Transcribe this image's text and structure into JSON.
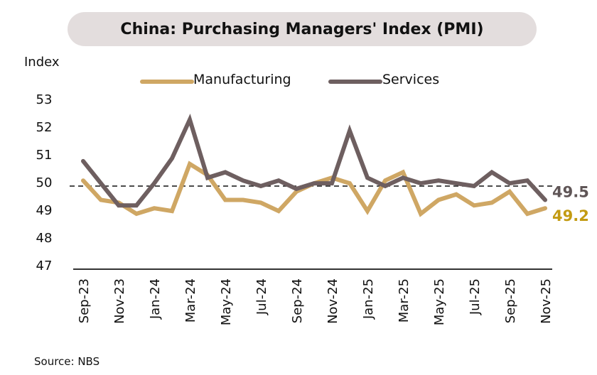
{
  "chart_data": {
    "type": "line",
    "title": "China: Purchasing Managers' Index (PMI)",
    "ylabel": "Index",
    "source": "Source: NBS",
    "ylim": [
      47,
      53
    ],
    "yticks": [
      47,
      48,
      49,
      50,
      51,
      52,
      53
    ],
    "reference_line": 50,
    "grid": false,
    "legend_placement": "top",
    "x": [
      "Sep-23",
      "Oct-23",
      "Nov-23",
      "Dec-23",
      "Jan-24",
      "Feb-24",
      "Mar-24",
      "Apr-24",
      "May-24",
      "Jun-24",
      "Jul-24",
      "Aug-24",
      "Sep-24",
      "Oct-24",
      "Nov-24",
      "Dec-24",
      "Jan-25",
      "Feb-25",
      "Mar-25",
      "Apr-25",
      "May-25",
      "Jun-25",
      "Jul-25",
      "Aug-25",
      "Sep-25",
      "Oct-25",
      "Nov-25"
    ],
    "xtick_labels": [
      "Sep-23",
      "Nov-23",
      "Jan-24",
      "Mar-24",
      "May-24",
      "Jul-24",
      "Sep-24",
      "Nov-24",
      "Jan-25",
      "Mar-25",
      "May-25",
      "Jul-25",
      "Sep-25",
      "Nov-25"
    ],
    "series": [
      {
        "name": "Manufacturing",
        "color": "#cfa764",
        "end_label": "49.2",
        "end_label_color": "#c39b12",
        "values": [
          50.2,
          49.5,
          49.4,
          49.0,
          49.2,
          49.1,
          50.8,
          50.4,
          49.5,
          49.5,
          49.4,
          49.1,
          49.8,
          50.1,
          50.3,
          50.1,
          49.1,
          50.2,
          50.5,
          49.0,
          49.5,
          49.7,
          49.3,
          49.4,
          49.8,
          49.0,
          49.2
        ]
      },
      {
        "name": "Services",
        "color": "#6e5f60",
        "end_label": "49.5",
        "end_label_color": "#5f5556",
        "values": [
          50.9,
          50.1,
          49.3,
          49.3,
          50.1,
          51.0,
          52.4,
          50.3,
          50.5,
          50.2,
          50.0,
          50.2,
          49.9,
          50.1,
          50.1,
          52.0,
          50.3,
          50.0,
          50.3,
          50.1,
          50.2,
          50.1,
          50.0,
          50.5,
          50.1,
          50.2,
          49.5
        ]
      }
    ]
  }
}
